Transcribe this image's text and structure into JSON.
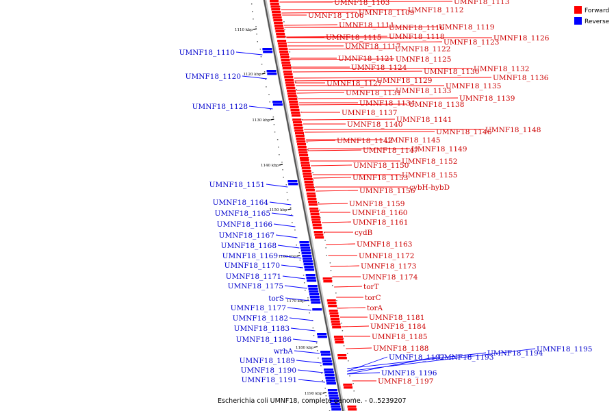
{
  "legend": {
    "forward_label": "Forward",
    "reverse_label": "Reverse",
    "forward_color": "#ff0000",
    "reverse_color": "#0000ff"
  },
  "caption": "Escherichia coli UMNF18, complete genome. - 0..5239207",
  "ticks": [
    "1110 kbp",
    "1120 kbp",
    "1130 kbp",
    "1140 kbp",
    "1150 kbp",
    "1160 kbp",
    "1170 kbp",
    "1180 kbp",
    "1190 kbp"
  ],
  "forward_genes": [
    "UMNF18_1103",
    "UMNF18_1113",
    "UMNF18_1106",
    "UMNF18_1109",
    "UMNF18_1112",
    "UMNF18_1111",
    "UMNF18_1116",
    "UMNF18_1119",
    "UMNF18_1115",
    "UMNF18_1118",
    "UMNF18_1126",
    "UMNF18_1123",
    "UMNF18_1117",
    "UMNF18_1122",
    "UMNF18_1121",
    "UMNF18_1125",
    "UMNF18_1124",
    "UMNF18_1130",
    "UMNF18_1132",
    "UMNF18_1136",
    "UMNF18_1127",
    "UMNF18_1129",
    "UMNF18_1135",
    "UMNF18_1131",
    "UMNF18_1133",
    "UMNF18_1139",
    "UMNF18_1134",
    "UMNF18_1138",
    "UMNF18_1137",
    "UMNF18_1141",
    "UMNF18_1140",
    "UMNF18_1146",
    "UMNF18_1148",
    "UMNF18_1142",
    "UMNF18_1145",
    "UMNF18_1147",
    "UMNF18_1149",
    "UMNF18_1150",
    "UMNF18_1152",
    "UMNF18_1153",
    "UMNF18_1155",
    "UMNF18_1156",
    "cybH-hybD",
    "UMNF18_1159",
    "UMNF18_1160",
    "UMNF18_1161",
    "cydB",
    "UMNF18_1163",
    "UMNF18_1172",
    "UMNF18_1173",
    "UMNF18_1174",
    "torT",
    "torC",
    "torA",
    "UMNF18_1181",
    "UMNF18_1184",
    "UMNF18_1185",
    "UMNF18_1188",
    "UMNF18_1197"
  ],
  "reverse_genes": [
    "UMNF18_1110",
    "UMNF18_1120",
    "UMNF18_1128",
    "UMNF18_1151",
    "UMNF18_1164",
    "UMNF18_1165",
    "UMNF18_1166",
    "UMNF18_1167",
    "UMNF18_1168",
    "UMNF18_1169",
    "UMNF18_1170",
    "UMNF18_1171",
    "UMNF18_1175",
    "torS",
    "UMNF18_1177",
    "UMNF18_1182",
    "UMNF18_1183",
    "UMNF18_1186",
    "wrbA",
    "UMNF18_1189",
    "UMNF18_1190",
    "UMNF18_1191",
    "UMNF18_1192",
    "UMNF18_1193",
    "UMNF18_1194",
    "UMNF18_1195",
    "UMNF18_1196"
  ]
}
